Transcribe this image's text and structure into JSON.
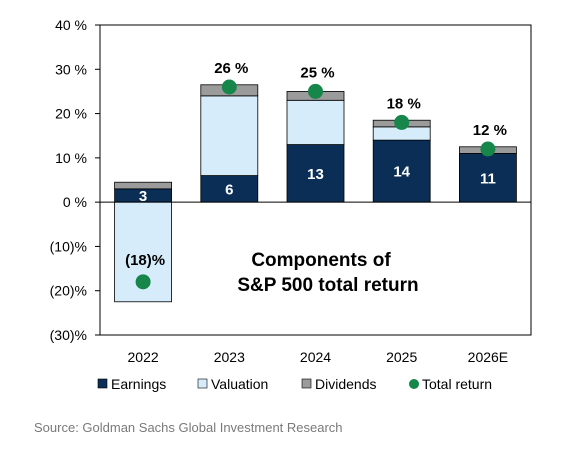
{
  "chart_data": {
    "type": "bar",
    "stacked": true,
    "categories": [
      "2022",
      "2023",
      "2024",
      "2025",
      "2026E"
    ],
    "series": [
      {
        "name": "Earnings",
        "values": [
          3,
          6,
          13,
          14,
          11
        ],
        "color": "#0b2e57",
        "data_labels": [
          "3",
          "6",
          "13",
          "14",
          "11"
        ]
      },
      {
        "name": "Valuation",
        "values": [
          -22.5,
          18,
          10,
          3,
          0
        ],
        "color": "#d6ecfb"
      },
      {
        "name": "Dividends",
        "values": [
          1.5,
          2.5,
          2,
          1.5,
          1.5
        ],
        "color": "#9b9b9b"
      }
    ],
    "total_return": {
      "name": "Total return",
      "values": [
        -18,
        26,
        25,
        18,
        12
      ],
      "labels": [
        "(18)%",
        "26 %",
        "25 %",
        "18 %",
        "12 %"
      ],
      "color": "#16864a"
    },
    "y_ticks": [
      {
        "value": 40,
        "label": "40 %"
      },
      {
        "value": 30,
        "label": "30 %"
      },
      {
        "value": 20,
        "label": "20 %"
      },
      {
        "value": 10,
        "label": "10 %"
      },
      {
        "value": 0,
        "label": "0 %"
      },
      {
        "value": -10,
        "label": "(10)%"
      },
      {
        "value": -20,
        "label": "(20)%"
      },
      {
        "value": -30,
        "label": "(30)%"
      }
    ],
    "ylim": [
      -30,
      40
    ],
    "annotation": [
      "Components of",
      "S&P 500 total return"
    ],
    "legend": [
      "Earnings",
      "Valuation",
      "Dividends",
      "Total return"
    ],
    "legend_position": "bottom",
    "grid": false
  },
  "footer": {
    "source": "Source: Goldman Sachs Global Investment Research"
  }
}
